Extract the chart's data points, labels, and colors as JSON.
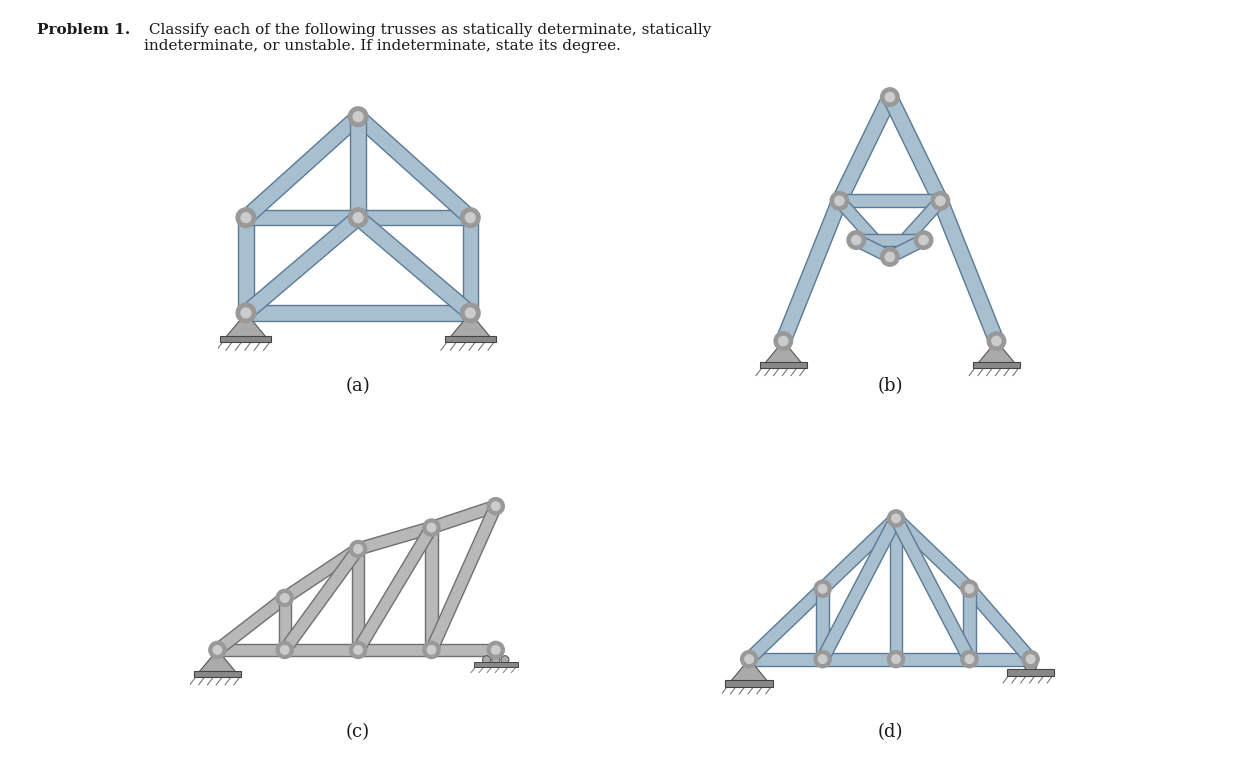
{
  "title_bold": "Problem 1.",
  "title_normal": " Classify each of the following trusses as statically determinate, statically\nindeterminate, or unstable. If indeterminate, state its degree.",
  "labels": [
    "(a)",
    "(b)",
    "(c)",
    "(d)"
  ],
  "truss_color_blue": "#a8bfd0",
  "truss_color_blue_dark": "#7a9ab5",
  "truss_color_gray": "#b8b8b8",
  "truss_color_gray_dark": "#909090",
  "truss_color_blue_stroke": "#5a7a95",
  "truss_color_gray_stroke": "#707070",
  "background": "#ffffff",
  "text_color": "#1a1a1a",
  "joint_color": "#888888",
  "support_color": "#888888"
}
